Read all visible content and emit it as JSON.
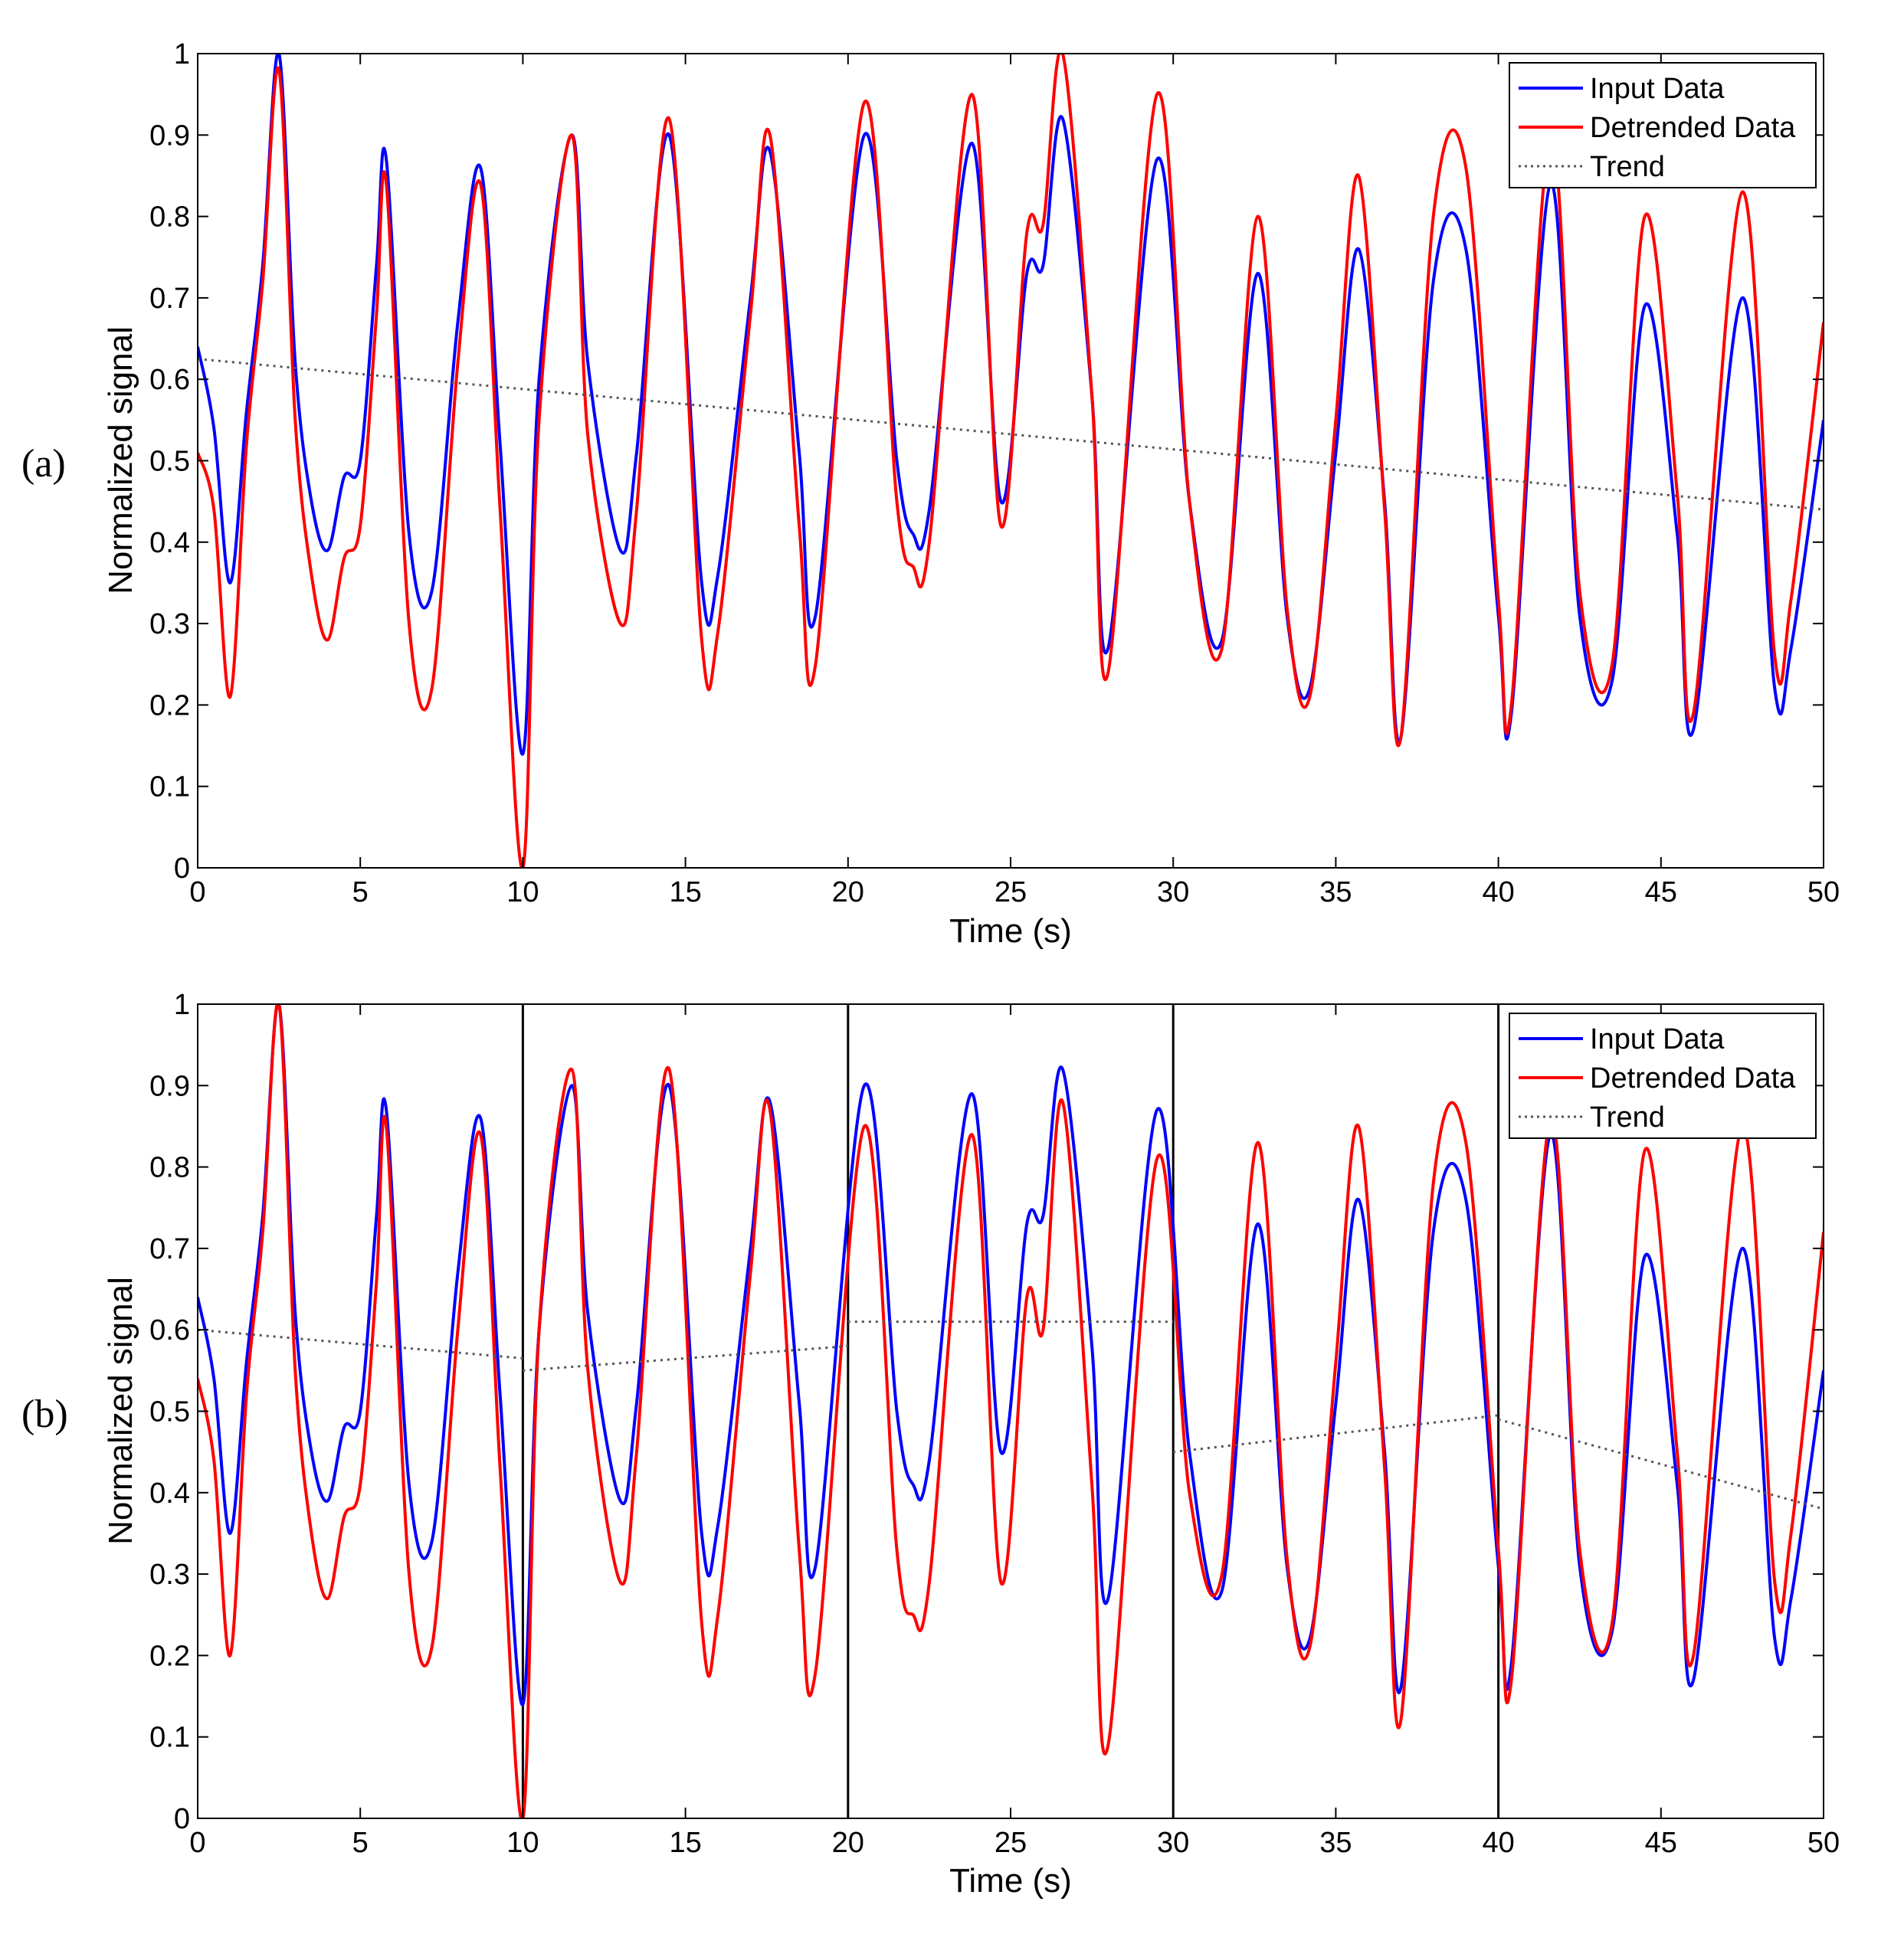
{
  "figure": {
    "panels": [
      "(a)",
      "(b)"
    ]
  },
  "chart_data": [
    {
      "panel": "(a)",
      "type": "line",
      "xlabel": "Time (s)",
      "ylabel": "Normalized signal",
      "xlim": [
        0,
        50
      ],
      "ylim": [
        0,
        1
      ],
      "xticks": [
        0,
        5,
        10,
        15,
        20,
        25,
        30,
        35,
        40,
        45,
        50
      ],
      "yticks": [
        0,
        0.1,
        0.2,
        0.3,
        0.4,
        0.5,
        0.6,
        0.7,
        0.8,
        0.9,
        1
      ],
      "legend_position": "top-right",
      "segment_boundaries": [],
      "legend": [
        "Input Data",
        "Detrended Data",
        "Trend"
      ],
      "series": [
        {
          "name": "Input Data",
          "color": "#0000ff",
          "style": "solid",
          "x": [
            0,
            0.5,
            1.0,
            1.5,
            2.0,
            2.5,
            3.0,
            3.5,
            4.0,
            4.5,
            5.0,
            5.5,
            5.8,
            6.5,
            7.2,
            8.0,
            8.7,
            9.3,
            10.0,
            10.5,
            11.5,
            12.0,
            13.0,
            13.5,
            14.5,
            15.5,
            16.0,
            17.0,
            17.6,
            18.5,
            19.0,
            20.5,
            21.5,
            22.0,
            22.5,
            23.8,
            24.7,
            25.5,
            26.0,
            26.6,
            27.5,
            28.0,
            29.5,
            30.5,
            31.5,
            32.6,
            33.5,
            34.2,
            35.0,
            35.7,
            36.5,
            37.0,
            38.0,
            39.0,
            40.0,
            40.4,
            41.6,
            42.5,
            43.5,
            44.5,
            45.5,
            46.0,
            47.5,
            48.5,
            49.0,
            50.0
          ],
          "values": [
            0.64,
            0.54,
            0.35,
            0.56,
            0.74,
            1.0,
            0.62,
            0.45,
            0.39,
            0.48,
            0.5,
            0.74,
            0.87,
            0.41,
            0.34,
            0.67,
            0.86,
            0.52,
            0.14,
            0.6,
            0.9,
            0.62,
            0.39,
            0.51,
            0.9,
            0.35,
            0.36,
            0.7,
            0.88,
            0.51,
            0.31,
            0.9,
            0.5,
            0.41,
            0.44,
            0.89,
            0.45,
            0.73,
            0.74,
            0.92,
            0.58,
            0.27,
            0.87,
            0.45,
            0.28,
            0.73,
            0.31,
            0.22,
            0.51,
            0.76,
            0.45,
            0.16,
            0.72,
            0.76,
            0.31,
            0.19,
            0.84,
            0.31,
            0.23,
            0.69,
            0.41,
            0.17,
            0.7,
            0.22,
            0.27,
            0.55
          ]
        },
        {
          "name": "Detrended Data",
          "color": "#ff0000",
          "style": "solid",
          "x": [
            0,
            0.5,
            1.0,
            1.5,
            2.0,
            2.5,
            3.0,
            3.5,
            4.0,
            4.5,
            5.0,
            5.5,
            5.8,
            6.5,
            7.2,
            8.0,
            8.7,
            9.3,
            10.0,
            10.5,
            11.5,
            12.0,
            13.0,
            13.5,
            14.5,
            15.5,
            16.0,
            17.0,
            17.6,
            18.5,
            19.0,
            20.5,
            21.5,
            22.0,
            22.5,
            23.8,
            24.7,
            25.5,
            26.0,
            26.6,
            27.5,
            28.0,
            29.5,
            30.5,
            31.5,
            32.6,
            33.5,
            34.2,
            35.0,
            35.7,
            36.5,
            37.0,
            38.0,
            39.0,
            40.0,
            40.4,
            41.6,
            42.5,
            43.5,
            44.5,
            45.5,
            46.0,
            47.5,
            48.5,
            49.0,
            50.0
          ],
          "values": [
            0.51,
            0.44,
            0.21,
            0.52,
            0.72,
            0.98,
            0.55,
            0.36,
            0.28,
            0.38,
            0.42,
            0.68,
            0.84,
            0.3,
            0.22,
            0.62,
            0.84,
            0.44,
            0.0,
            0.55,
            0.9,
            0.53,
            0.3,
            0.44,
            0.92,
            0.28,
            0.29,
            0.68,
            0.9,
            0.42,
            0.25,
            0.94,
            0.45,
            0.37,
            0.4,
            0.95,
            0.42,
            0.78,
            0.79,
            1.0,
            0.58,
            0.24,
            0.95,
            0.45,
            0.27,
            0.8,
            0.32,
            0.21,
            0.55,
            0.85,
            0.44,
            0.16,
            0.8,
            0.86,
            0.33,
            0.2,
            0.9,
            0.34,
            0.25,
            0.8,
            0.46,
            0.19,
            0.83,
            0.26,
            0.33,
            0.67
          ]
        },
        {
          "name": "Trend",
          "color": "#555555",
          "style": "dotted",
          "x": [
            0,
            50
          ],
          "values": [
            0.625,
            0.44
          ]
        }
      ]
    },
    {
      "panel": "(b)",
      "type": "line",
      "xlabel": "Time (s)",
      "ylabel": "Normalized signal",
      "xlim": [
        0,
        50
      ],
      "ylim": [
        0,
        1
      ],
      "xticks": [
        0,
        5,
        10,
        15,
        20,
        25,
        30,
        35,
        40,
        45,
        50
      ],
      "yticks": [
        0,
        0.1,
        0.2,
        0.3,
        0.4,
        0.5,
        0.6,
        0.7,
        0.8,
        0.9,
        1
      ],
      "legend_position": "top-right",
      "segment_boundaries": [
        10,
        20,
        30,
        40
      ],
      "legend": [
        "Input Data",
        "Detrended Data",
        "Trend"
      ],
      "series": [
        {
          "name": "Input Data",
          "color": "#0000ff",
          "style": "solid",
          "x": [
            0,
            0.5,
            1.0,
            1.5,
            2.0,
            2.5,
            3.0,
            3.5,
            4.0,
            4.5,
            5.0,
            5.5,
            5.8,
            6.5,
            7.2,
            8.0,
            8.7,
            9.3,
            10.0,
            10.5,
            11.5,
            12.0,
            13.0,
            13.5,
            14.5,
            15.5,
            16.0,
            17.0,
            17.6,
            18.5,
            19.0,
            20.5,
            21.5,
            22.0,
            22.5,
            23.8,
            24.7,
            25.5,
            26.0,
            26.6,
            27.5,
            28.0,
            29.5,
            30.5,
            31.5,
            32.6,
            33.5,
            34.2,
            35.0,
            35.7,
            36.5,
            37.0,
            38.0,
            39.0,
            40.0,
            40.4,
            41.6,
            42.5,
            43.5,
            44.5,
            45.5,
            46.0,
            47.5,
            48.5,
            49.0,
            50.0
          ],
          "values": [
            0.64,
            0.54,
            0.35,
            0.56,
            0.74,
            1.0,
            0.62,
            0.45,
            0.39,
            0.48,
            0.5,
            0.74,
            0.87,
            0.41,
            0.34,
            0.67,
            0.86,
            0.52,
            0.14,
            0.6,
            0.9,
            0.62,
            0.39,
            0.51,
            0.9,
            0.35,
            0.36,
            0.7,
            0.88,
            0.51,
            0.31,
            0.9,
            0.5,
            0.41,
            0.44,
            0.89,
            0.45,
            0.73,
            0.74,
            0.92,
            0.58,
            0.27,
            0.87,
            0.45,
            0.28,
            0.73,
            0.31,
            0.22,
            0.51,
            0.76,
            0.45,
            0.16,
            0.72,
            0.76,
            0.31,
            0.19,
            0.84,
            0.31,
            0.23,
            0.69,
            0.41,
            0.17,
            0.7,
            0.22,
            0.27,
            0.55
          ]
        },
        {
          "name": "Detrended Data",
          "color": "#ff0000",
          "style": "solid",
          "x": [
            0,
            0.5,
            1.0,
            1.5,
            2.0,
            2.5,
            3.0,
            3.5,
            4.0,
            4.5,
            5.0,
            5.5,
            5.8,
            6.5,
            7.2,
            8.0,
            8.7,
            9.3,
            10.0,
            10.5,
            11.5,
            12.0,
            13.0,
            13.5,
            14.5,
            15.5,
            16.0,
            17.0,
            17.6,
            18.5,
            19.0,
            20.5,
            21.5,
            22.0,
            22.5,
            23.8,
            24.7,
            25.5,
            26.0,
            26.6,
            27.5,
            28.0,
            29.5,
            30.5,
            31.5,
            32.6,
            33.5,
            34.2,
            35.0,
            35.7,
            36.5,
            37.0,
            38.0,
            39.0,
            40.0,
            40.4,
            41.6,
            42.5,
            43.5,
            44.5,
            45.5,
            46.0,
            47.5,
            48.5,
            49.0,
            50.0
          ],
          "values": [
            0.54,
            0.44,
            0.2,
            0.52,
            0.72,
            1.0,
            0.55,
            0.35,
            0.27,
            0.37,
            0.41,
            0.66,
            0.85,
            0.3,
            0.21,
            0.6,
            0.84,
            0.43,
            0.0,
            0.6,
            0.92,
            0.55,
            0.29,
            0.45,
            0.92,
            0.24,
            0.25,
            0.67,
            0.87,
            0.33,
            0.18,
            0.85,
            0.33,
            0.25,
            0.29,
            0.84,
            0.29,
            0.64,
            0.6,
            0.88,
            0.41,
            0.09,
            0.81,
            0.4,
            0.3,
            0.83,
            0.32,
            0.21,
            0.56,
            0.85,
            0.43,
            0.12,
            0.78,
            0.83,
            0.33,
            0.17,
            0.86,
            0.33,
            0.24,
            0.82,
            0.45,
            0.2,
            0.85,
            0.29,
            0.35,
            0.72
          ]
        },
        {
          "name": "Trend",
          "color": "#555555",
          "style": "dotted",
          "segments": [
            {
              "x": [
                0,
                10
              ],
              "values": [
                0.6,
                0.565
              ]
            },
            {
              "x": [
                10,
                20
              ],
              "values": [
                0.55,
                0.58
              ]
            },
            {
              "x": [
                20,
                30
              ],
              "values": [
                0.61,
                0.61
              ]
            },
            {
              "x": [
                30,
                40
              ],
              "values": [
                0.45,
                0.495
              ]
            },
            {
              "x": [
                40,
                50
              ],
              "values": [
                0.49,
                0.38
              ]
            }
          ]
        }
      ]
    }
  ]
}
